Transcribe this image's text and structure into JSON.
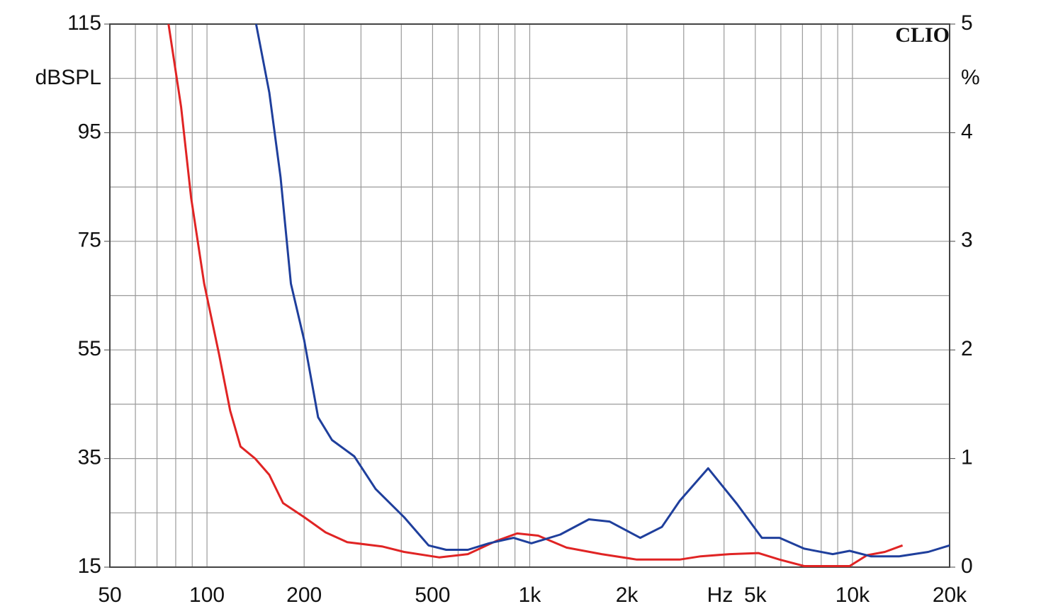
{
  "chart_data": {
    "type": "line",
    "annotation": "CLIO",
    "x_label": "Hz",
    "y_label": "dBSPL",
    "y2_label": "%",
    "log_x": true,
    "xlim": [
      50,
      20000
    ],
    "xticks": [
      50,
      100,
      200,
      500,
      {
        "value": 1000,
        "label": "1k"
      },
      {
        "value": 2000,
        "label": "2k"
      },
      {
        "value": 5000,
        "label": "5k"
      },
      {
        "value": 10000,
        "label": "10k"
      },
      {
        "value": 20000,
        "label": "20k"
      }
    ],
    "xgrid": [
      50,
      60,
      70,
      80,
      90,
      100,
      200,
      300,
      400,
      500,
      600,
      700,
      800,
      900,
      1000,
      2000,
      3000,
      4000,
      5000,
      6000,
      7000,
      8000,
      9000,
      10000,
      20000
    ],
    "ylim": [
      15,
      115
    ],
    "yticks": [
      15,
      35,
      55,
      75,
      95,
      115
    ],
    "ygrid": [
      15,
      25,
      35,
      45,
      55,
      65,
      75,
      85,
      95,
      105,
      115
    ],
    "y2lim": [
      0,
      5
    ],
    "y2ticks": [
      0,
      1,
      2,
      3,
      4,
      5
    ],
    "series": [
      {
        "color": "#e02424",
        "axis": "y2",
        "x": [
          76,
          83.1,
          89.3,
          98,
          109,
          118,
          127,
          141,
          156,
          172,
          200,
          233,
          272,
          350,
          408,
          524,
          643,
          786,
          914,
          1062,
          1300,
          1670,
          2148,
          2915,
          3386,
          4167,
          5110,
          5944,
          7085,
          9800,
          11100,
          12600,
          14300
        ],
        "values": [
          5.0,
          4.24,
          3.4,
          2.61,
          1.96,
          1.44,
          1.11,
          1.0,
          0.85,
          0.59,
          0.46,
          0.32,
          0.23,
          0.19,
          0.14,
          0.09,
          0.12,
          0.24,
          0.31,
          0.29,
          0.18,
          0.12,
          0.07,
          0.07,
          0.1,
          0.12,
          0.13,
          0.07,
          0.01,
          0.01,
          0.11,
          0.14,
          0.2
        ]
      },
      {
        "color": "#1f3f9c",
        "axis": "y2",
        "x": [
          142,
          156,
          169,
          182,
          200,
          221,
          244,
          286,
          333,
          408,
          486,
          551,
          643,
          748,
          890,
          1012,
          1243,
          1525,
          1767,
          2200,
          2568,
          2915,
          3572,
          4390,
          5240,
          5944,
          7085,
          8690,
          9800,
          11400,
          13980,
          17170,
          20000
        ],
        "values": [
          5.0,
          4.37,
          3.59,
          2.61,
          2.09,
          1.38,
          1.17,
          1.02,
          0.72,
          0.46,
          0.2,
          0.16,
          0.16,
          0.22,
          0.27,
          0.22,
          0.3,
          0.44,
          0.42,
          0.27,
          0.37,
          0.61,
          0.91,
          0.58,
          0.27,
          0.27,
          0.17,
          0.12,
          0.15,
          0.1,
          0.1,
          0.14,
          0.2
        ]
      }
    ]
  }
}
